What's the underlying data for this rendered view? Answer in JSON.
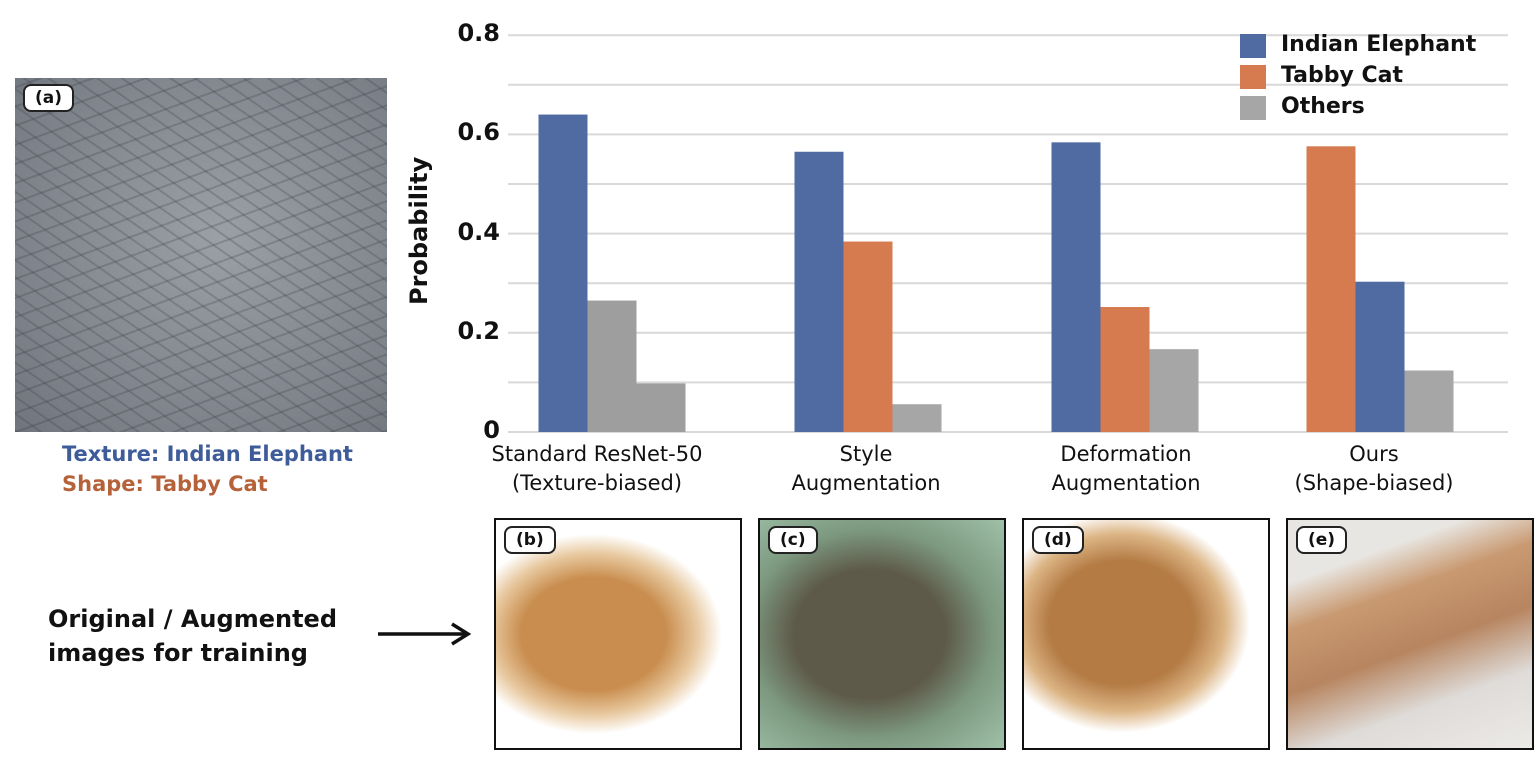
{
  "panel_a": {
    "tag": "(a)",
    "texture_caption": "Texture: Indian Elephant",
    "shape_caption": "Shape: Tabby Cat",
    "texture_color": "#3e5b9a",
    "shape_color": "#b5623a"
  },
  "panels": [
    {
      "tag": "(b)"
    },
    {
      "tag": "(c)"
    },
    {
      "tag": "(d)"
    },
    {
      "tag": "(e)"
    }
  ],
  "row_caption": {
    "line1": "Original / Augmented",
    "line2": "images for training"
  },
  "chart_data": {
    "type": "bar",
    "ylabel": "Probability",
    "ylim": [
      0,
      0.8
    ],
    "yticks": [
      "0",
      "0.2",
      "0.4",
      "0.6",
      "0.8"
    ],
    "ytick_values": [
      0,
      0.2,
      0.4,
      0.6,
      0.8
    ],
    "grid_step": 0.1,
    "legend_position": "top-right",
    "legend": [
      {
        "name": "Indian Elephant",
        "color": "#4f6ba1"
      },
      {
        "name": "Tabby Cat",
        "color": "#d67b50"
      },
      {
        "name": "Others",
        "color": "#a6a6a6"
      }
    ],
    "categories": [
      {
        "line1": "Standard ResNet-50",
        "line2": "(Texture-biased)"
      },
      {
        "line1": "Style",
        "line2": "Augmentation"
      },
      {
        "line1": "Deformation",
        "line2": "Augmentation"
      },
      {
        "line1": "Ours",
        "line2": "(Shape-biased)"
      }
    ],
    "groups": [
      [
        {
          "series": "Indian Elephant",
          "value": 0.64
        },
        {
          "series": "Others",
          "value": 0.265
        },
        {
          "series": "Others",
          "value": 0.098
        }
      ],
      [
        {
          "series": "Indian Elephant",
          "value": 0.565
        },
        {
          "series": "Tabby Cat",
          "value": 0.384
        },
        {
          "series": "Others",
          "value": 0.056
        }
      ],
      [
        {
          "series": "Indian Elephant",
          "value": 0.584
        },
        {
          "series": "Tabby Cat",
          "value": 0.252
        },
        {
          "series": "Others",
          "value": 0.167
        }
      ],
      [
        {
          "series": "Tabby Cat",
          "value": 0.576
        },
        {
          "series": "Indian Elephant",
          "value": 0.303
        },
        {
          "series": "Others",
          "value": 0.124
        }
      ]
    ]
  }
}
